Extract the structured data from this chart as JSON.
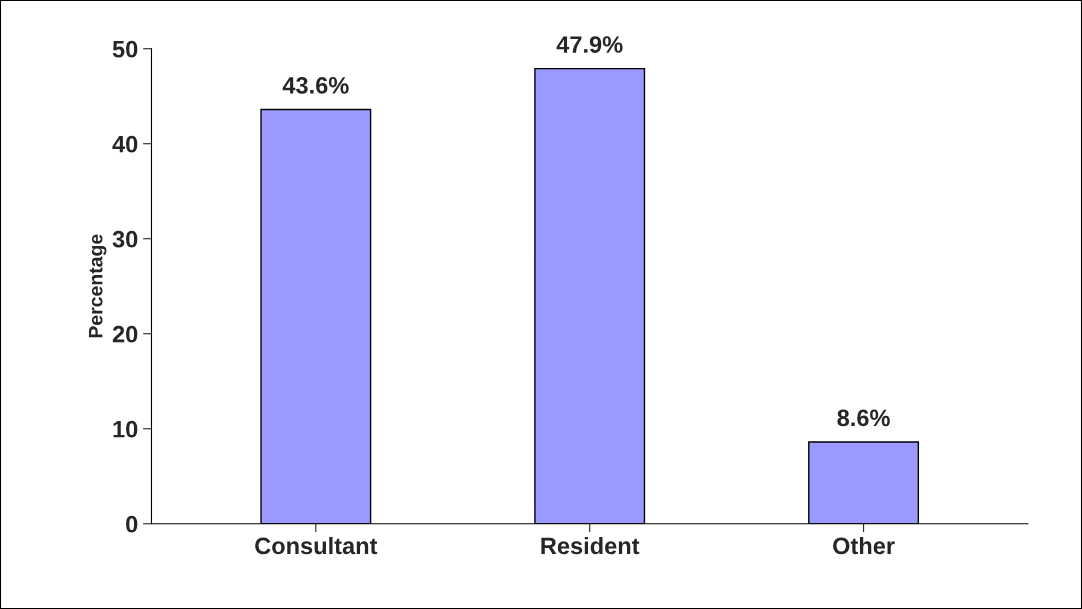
{
  "chart_data": {
    "type": "bar",
    "ylabel": "Percentage",
    "categories": [
      "Consultant",
      "Resident",
      "Other"
    ],
    "values": [
      43.6,
      47.9,
      8.6
    ],
    "color": "#9999ff",
    "value_labels": [
      "43.6%",
      "47.9%",
      "8.6%"
    ],
    "ylim": [
      0,
      50
    ],
    "yticks": [
      0,
      10,
      20,
      30,
      40,
      50
    ],
    "grid": false
  }
}
